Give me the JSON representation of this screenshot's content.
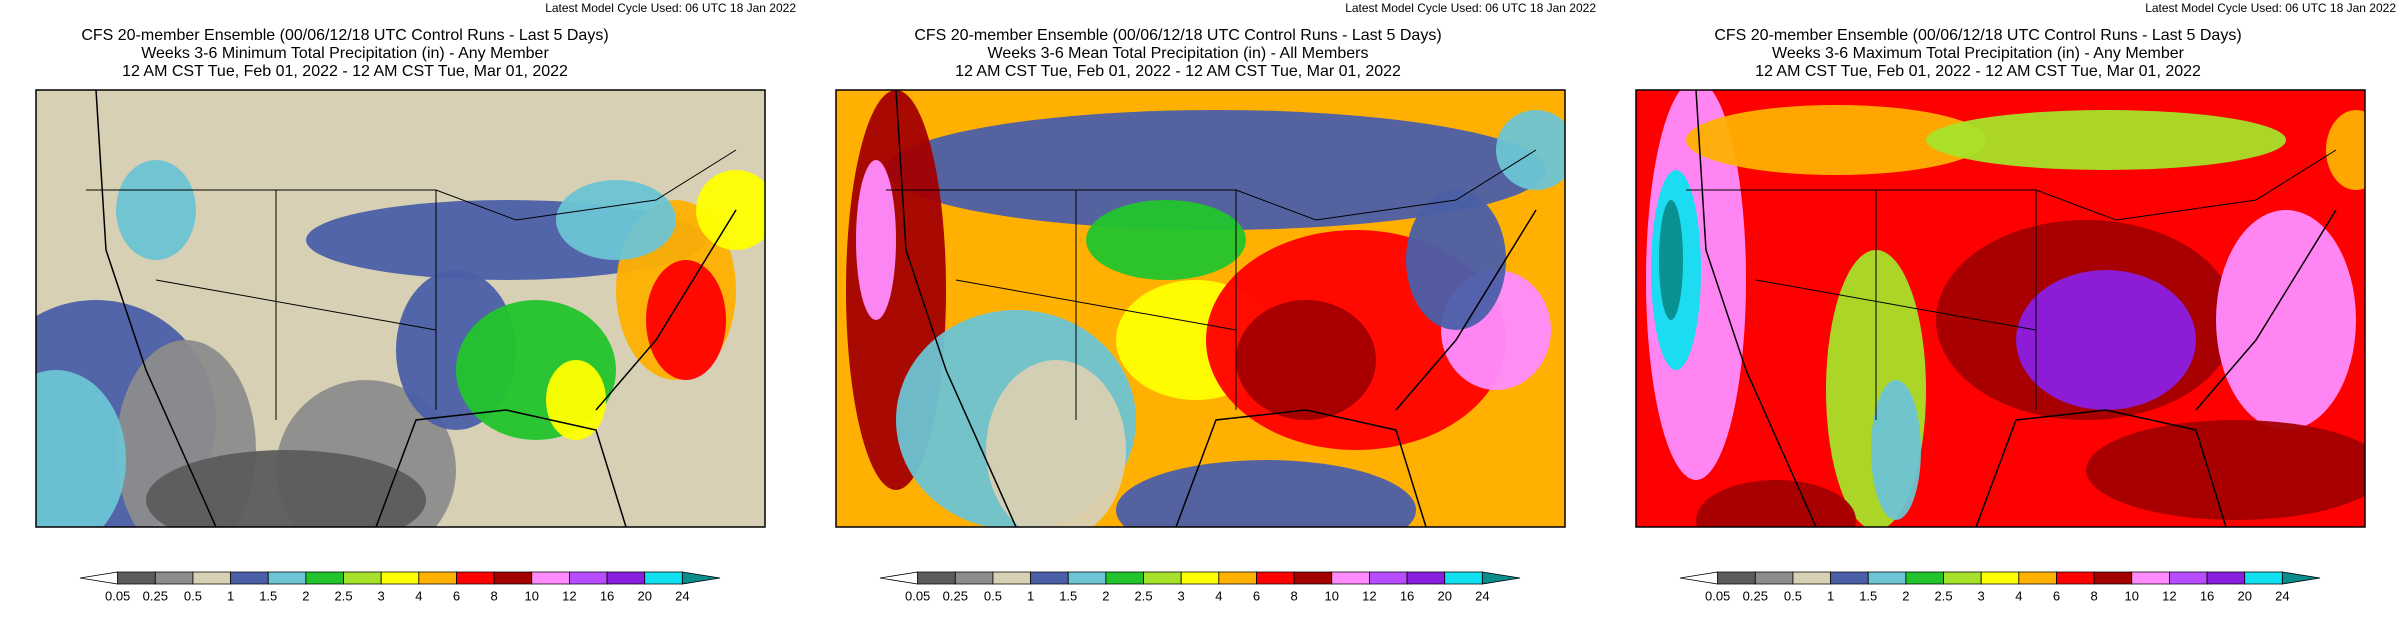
{
  "panels": [
    {
      "cycle": "Latest Model Cycle Used: 06 UTC 18 Jan 2022",
      "title": "CFS 20-member Ensemble (00/06/12/18 UTC Control Runs - Last 5 Days)",
      "subtitle": "Weeks 3-6 Minimum Total Precipitation (in) - Any Member",
      "period": "12 AM CST Tue, Feb 01, 2022 - 12 AM CST Tue, Mar 01, 2022",
      "colorbar": {
        "labels": [
          "0.05",
          "0.25",
          "0.5",
          "1",
          "1.5",
          "2",
          "2.5",
          "3",
          "4",
          "6",
          "8",
          "10",
          "12",
          "16",
          "20",
          "24"
        ]
      }
    },
    {
      "cycle": "Latest Model Cycle Used: 06 UTC 18 Jan 2022",
      "title": "CFS 20-member Ensemble (00/06/12/18 UTC Control Runs - Last 5 Days)",
      "subtitle": "Weeks 3-6 Mean Total Precipitation (in) - All Members",
      "period": "12 AM CST Tue, Feb 01, 2022 - 12 AM CST Tue, Mar 01, 2022",
      "colorbar": {
        "labels": [
          "0.05",
          "0.25",
          "0.5",
          "1",
          "1.5",
          "2",
          "2.5",
          "3",
          "4",
          "6",
          "8",
          "10",
          "12",
          "16",
          "20",
          "24"
        ]
      }
    },
    {
      "cycle": "Latest Model Cycle Used: 06 UTC 18 Jan 2022",
      "title": "CFS 20-member Ensemble (00/06/12/18 UTC Control Runs - Last 5 Days)",
      "subtitle": "Weeks 3-6 Maximum Total Precipitation (in) - Any Member",
      "period": "12 AM CST Tue, Feb 01, 2022 - 12 AM CST Tue, Mar 01, 2022",
      "colorbar": {
        "labels": [
          "0.05",
          "0.25",
          "0.5",
          "1",
          "1.5",
          "2",
          "2.5",
          "3",
          "4",
          "6",
          "8",
          "10",
          "12",
          "16",
          "20",
          "24"
        ]
      }
    }
  ],
  "colors": [
    "#ffffff",
    "#5c5c5c",
    "#8c8c8c",
    "#d8d0b4",
    "#4b5fa8",
    "#6cc4d4",
    "#22c42c",
    "#a6e22a",
    "#ffff00",
    "#ffb000",
    "#ff0000",
    "#a30000",
    "#ff8cff",
    "#b84cff",
    "#8a1ee0",
    "#10e0f0",
    "#0a8c8c"
  ]
}
